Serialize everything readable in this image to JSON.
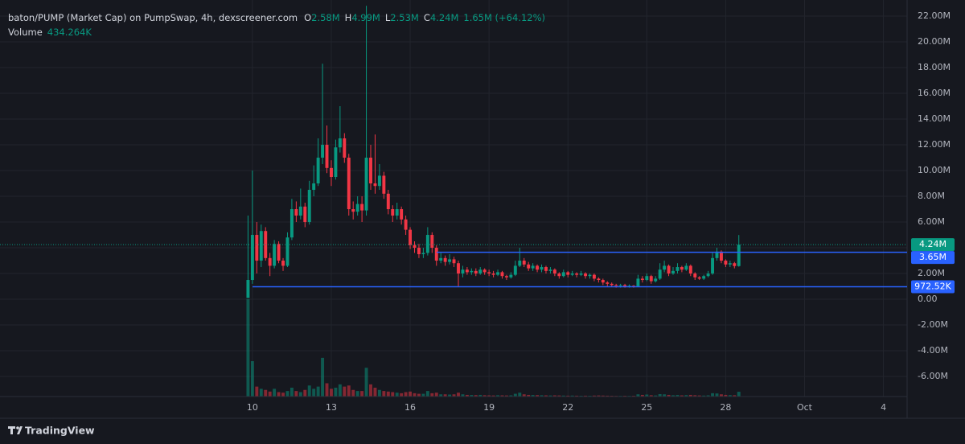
{
  "chart_data": {
    "type": "candlestick",
    "title": "baton/PUMP (Market Cap) on PumpSwap, 4h, dexscreener.com",
    "ohlc_header": {
      "o_label": "O",
      "o": "2.58M",
      "h_label": "H",
      "h": "4.99M",
      "l_label": "L",
      "l": "2.53M",
      "c_label": "C",
      "c": "4.24M",
      "change": "1.65M (+64.12%)"
    },
    "volume_header": {
      "label": "Volume",
      "value": "434.264K"
    },
    "watermark": "TradingView",
    "up_color": "#089981",
    "down_color": "#f23645",
    "x": [
      0,
      1,
      2,
      3,
      4,
      5,
      6,
      7,
      8,
      9,
      10,
      11,
      12,
      13,
      14,
      15,
      16,
      17,
      18,
      19,
      20,
      21,
      22,
      23,
      24,
      25,
      26,
      27,
      28,
      29,
      30,
      31,
      32,
      33,
      34,
      35,
      36,
      37,
      38,
      39,
      40,
      41,
      42,
      43,
      44,
      45,
      46,
      47,
      48,
      49,
      50,
      51,
      52,
      53,
      54,
      55,
      56,
      57,
      58,
      59,
      60,
      61,
      62,
      63,
      64,
      65,
      66,
      67,
      68,
      69,
      70,
      71,
      72,
      73,
      74,
      75,
      76,
      77,
      78,
      79,
      80,
      81,
      82,
      83,
      84,
      85,
      86,
      87,
      88,
      89,
      90,
      91,
      92,
      93,
      94,
      95,
      96,
      97,
      98,
      99,
      100,
      101,
      102,
      103,
      104,
      105,
      106,
      107,
      108,
      109,
      110,
      111,
      112
    ],
    "open": [
      0.1,
      1.5,
      5.0,
      3.0,
      5.3,
      3.2,
      2.6,
      4.3,
      3.0,
      2.6,
      4.8,
      7.0,
      6.5,
      7.2,
      6.0,
      8.5,
      9.0,
      11.0,
      12.0,
      10.2,
      9.5,
      11.8,
      12.5,
      11.0,
      7.0,
      6.8,
      7.4,
      6.9,
      11.0,
      9.0,
      8.8,
      9.6,
      8.2,
      7.0,
      6.5,
      7.0,
      6.2,
      5.4,
      4.2,
      4.0,
      3.5,
      3.6,
      5.0,
      4.0,
      3.0,
      3.2,
      2.9,
      3.1,
      2.8,
      2.0,
      2.3,
      2.1,
      2.2,
      2.0,
      2.3,
      2.1,
      2.0,
      1.9,
      2.1,
      1.8,
      1.7,
      1.9,
      2.6,
      3.0,
      2.7,
      2.4,
      2.6,
      2.3,
      2.5,
      2.2,
      2.3,
      2.0,
      1.8,
      2.1,
      1.9,
      2.0,
      1.9,
      2.0,
      1.8,
      1.9,
      1.6,
      1.5,
      1.3,
      1.2,
      1.1,
      1.05,
      1.1,
      1.0,
      1.05,
      1.0,
      1.6,
      1.5,
      1.8,
      1.4,
      1.6,
      2.3,
      2.6,
      2.0,
      2.2,
      2.5,
      2.3,
      2.6,
      2.0,
      1.7,
      1.6,
      1.8,
      2.0,
      3.2,
      3.7,
      3.0,
      2.7,
      2.8,
      2.58
    ],
    "high": [
      6.5,
      10.0,
      6.0,
      5.8,
      5.6,
      3.6,
      4.6,
      4.5,
      3.2,
      5.2,
      7.8,
      7.6,
      8.6,
      7.5,
      9.2,
      10.4,
      12.5,
      18.3,
      13.5,
      10.8,
      12.4,
      15.0,
      12.9,
      11.3,
      7.6,
      8.0,
      8.0,
      22.8,
      12.0,
      12.8,
      10.5,
      9.9,
      8.5,
      7.3,
      7.5,
      7.2,
      6.5,
      5.6,
      4.5,
      4.3,
      4.0,
      5.6,
      5.2,
      4.2,
      3.6,
      3.4,
      3.5,
      3.3,
      3.0,
      2.6,
      2.5,
      2.4,
      2.4,
      2.5,
      2.4,
      2.3,
      2.2,
      2.3,
      2.2,
      1.9,
      2.1,
      3.0,
      4.0,
      3.2,
      2.9,
      2.8,
      2.7,
      2.7,
      2.6,
      2.5,
      2.4,
      2.1,
      2.3,
      2.2,
      2.2,
      2.1,
      2.2,
      2.1,
      2.0,
      2.0,
      1.7,
      1.6,
      1.4,
      1.3,
      1.2,
      1.2,
      1.2,
      1.15,
      1.1,
      1.9,
      1.8,
      2.0,
      1.9,
      1.8,
      2.8,
      3.0,
      2.7,
      2.5,
      2.8,
      2.6,
      2.8,
      2.7,
      2.1,
      1.8,
      1.9,
      2.2,
      3.6,
      4.0,
      3.8,
      3.1,
      3.0,
      2.9,
      4.99
    ],
    "low": [
      0.1,
      1.2,
      2.0,
      2.5,
      3.0,
      1.8,
      2.4,
      2.8,
      2.2,
      2.5,
      4.6,
      6.0,
      6.2,
      5.6,
      5.8,
      8.0,
      8.8,
      10.5,
      9.8,
      8.8,
      9.3,
      11.4,
      10.6,
      6.5,
      6.2,
      6.5,
      6.0,
      6.5,
      8.5,
      8.2,
      8.5,
      7.8,
      6.6,
      6.0,
      6.2,
      5.8,
      5.0,
      3.9,
      3.6,
      3.2,
      3.2,
      3.4,
      3.6,
      2.6,
      2.8,
      2.6,
      2.7,
      2.5,
      1.0,
      1.7,
      1.9,
      1.9,
      1.8,
      1.9,
      1.9,
      1.8,
      1.7,
      1.8,
      1.6,
      1.5,
      1.6,
      1.8,
      2.5,
      2.5,
      2.2,
      2.2,
      2.1,
      2.1,
      2.0,
      2.0,
      1.8,
      1.6,
      1.7,
      1.7,
      1.8,
      1.7,
      1.8,
      1.6,
      1.6,
      1.4,
      1.3,
      1.1,
      1.0,
      0.95,
      0.9,
      0.9,
      0.9,
      0.9,
      0.9,
      0.95,
      1.3,
      1.4,
      1.2,
      1.3,
      1.5,
      2.1,
      1.8,
      1.9,
      2.0,
      2.1,
      2.2,
      1.8,
      1.5,
      1.5,
      1.5,
      1.7,
      1.9,
      3.0,
      2.8,
      2.5,
      2.5,
      2.4,
      2.53
    ],
    "close": [
      1.5,
      5.0,
      3.0,
      5.3,
      3.2,
      2.6,
      4.3,
      3.0,
      2.6,
      4.8,
      7.0,
      6.5,
      7.2,
      6.0,
      8.5,
      9.0,
      11.0,
      12.0,
      10.2,
      9.5,
      11.8,
      12.5,
      11.0,
      7.0,
      6.8,
      7.4,
      6.9,
      11.0,
      9.0,
      8.8,
      9.6,
      8.2,
      7.0,
      6.5,
      7.0,
      6.2,
      5.4,
      4.2,
      4.0,
      3.5,
      3.6,
      5.0,
      4.0,
      3.0,
      3.2,
      2.9,
      3.1,
      2.8,
      2.0,
      2.3,
      2.1,
      2.2,
      2.0,
      2.3,
      2.1,
      2.0,
      1.9,
      2.1,
      1.8,
      1.7,
      1.9,
      2.6,
      3.0,
      2.7,
      2.4,
      2.6,
      2.3,
      2.5,
      2.2,
      2.3,
      2.0,
      1.8,
      2.1,
      1.9,
      2.0,
      1.9,
      2.0,
      1.8,
      1.9,
      1.6,
      1.5,
      1.3,
      1.2,
      1.1,
      1.05,
      1.1,
      1.0,
      1.05,
      1.0,
      1.6,
      1.5,
      1.8,
      1.4,
      1.6,
      2.3,
      2.6,
      2.0,
      2.2,
      2.5,
      2.3,
      2.6,
      2.0,
      1.7,
      1.6,
      1.8,
      2.0,
      3.2,
      3.7,
      3.0,
      2.7,
      2.8,
      2.58,
      4.24
    ],
    "volume": [
      8800,
      3200,
      900,
      700,
      600,
      450,
      700,
      400,
      350,
      500,
      800,
      500,
      400,
      600,
      1000,
      700,
      900,
      3500,
      1200,
      700,
      800,
      1100,
      900,
      1000,
      600,
      500,
      500,
      2600,
      1100,
      800,
      600,
      500,
      450,
      400,
      350,
      300,
      400,
      450,
      300,
      250,
      250,
      500,
      300,
      350,
      200,
      200,
      180,
      200,
      350,
      200,
      150,
      140,
      130,
      150,
      120,
      110,
      100,
      120,
      110,
      100,
      110,
      250,
      350,
      200,
      150,
      140,
      130,
      120,
      110,
      100,
      110,
      100,
      90,
      80,
      90,
      80,
      70,
      80,
      70,
      90,
      100,
      90,
      80,
      70,
      60,
      60,
      70,
      60,
      70,
      200,
      150,
      180,
      120,
      100,
      220,
      200,
      150,
      120,
      140,
      110,
      130,
      150,
      120,
      100,
      90,
      110,
      300,
      280,
      200,
      150,
      130,
      120,
      434.264
    ],
    "xlim": [
      -56.6,
      150.4
    ],
    "xticks": [
      {
        "value": 1,
        "label": "10"
      },
      {
        "value": 19,
        "label": "13"
      },
      {
        "value": 37,
        "label": "16"
      },
      {
        "value": 55,
        "label": "19"
      },
      {
        "value": 73,
        "label": "22"
      },
      {
        "value": 91,
        "label": "25"
      },
      {
        "value": 109,
        "label": "28"
      },
      {
        "value": 127,
        "label": "Oct"
      },
      {
        "value": 145,
        "label": "4"
      }
    ],
    "ylim": [
      -7.56,
      22.75
    ],
    "yticks": [
      {
        "value": 22,
        "label": "22.00M"
      },
      {
        "value": 20,
        "label": "20.00M"
      },
      {
        "value": 18,
        "label": "18.00M"
      },
      {
        "value": 16,
        "label": "16.00M"
      },
      {
        "value": 14,
        "label": "14.00M"
      },
      {
        "value": 12,
        "label": "12.00M"
      },
      {
        "value": 10,
        "label": "10.00M"
      },
      {
        "value": 8,
        "label": "8.00M"
      },
      {
        "value": 6,
        "label": "6.00M"
      },
      {
        "value": 4,
        "label": "4.00M"
      },
      {
        "value": 2,
        "label": "2.00M"
      },
      {
        "value": 0,
        "label": "0.00"
      },
      {
        "value": -2,
        "label": "-2.00M"
      },
      {
        "value": -4,
        "label": "-4.00M"
      },
      {
        "value": -6,
        "label": "-6.00M"
      }
    ],
    "grid": true,
    "last_price": {
      "value": 4.24,
      "label": "4.24M",
      "color": "#089981"
    },
    "price_lines": [
      {
        "value": 3.65,
        "label": "3.65M",
        "color": "#2962ff"
      },
      {
        "value": 0.97252,
        "label": "972.52K",
        "color": "#2962ff"
      }
    ]
  }
}
